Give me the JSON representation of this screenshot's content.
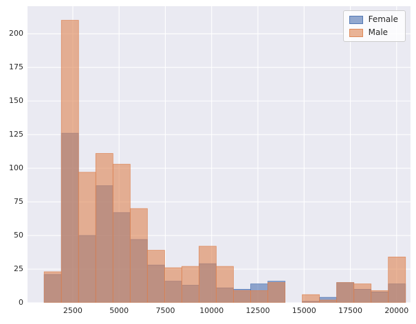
{
  "chart_data": {
    "type": "bar",
    "subtype": "overlaid-histogram",
    "title": "",
    "xlabel": "",
    "ylabel": "",
    "bin_edges": [
      950,
      1880,
      2810,
      3740,
      4670,
      5600,
      6530,
      7460,
      8390,
      9320,
      10250,
      11180,
      12110,
      13040,
      13970,
      14900,
      15830,
      16760,
      17690,
      18620,
      19550,
      20480
    ],
    "series": [
      {
        "name": "Female",
        "color": "#4C72B0",
        "values": [
          21,
          126,
          50,
          87,
          67,
          47,
          28,
          16,
          13,
          29,
          11,
          10,
          14,
          16,
          0,
          1,
          4,
          15,
          10,
          8,
          14
        ]
      },
      {
        "name": "Male",
        "color": "#DD8452",
        "values": [
          23,
          210,
          97,
          111,
          103,
          70,
          39,
          26,
          27,
          42,
          27,
          9,
          9,
          15,
          0,
          6,
          2,
          15,
          14,
          9,
          34
        ]
      }
    ],
    "x_ticks": [
      2500,
      5000,
      7500,
      10000,
      12500,
      15000,
      17500,
      20000
    ],
    "y_ticks": [
      0,
      25,
      50,
      75,
      100,
      125,
      150,
      175,
      200
    ],
    "xlim": [
      50,
      20750
    ],
    "ylim": [
      0,
      220.5
    ],
    "alpha": 0.6,
    "grid": true,
    "grid_color": "#ffffff",
    "plot_background": "#eaeaf2",
    "legend_position": "upper right",
    "tick_color": "#262626"
  }
}
